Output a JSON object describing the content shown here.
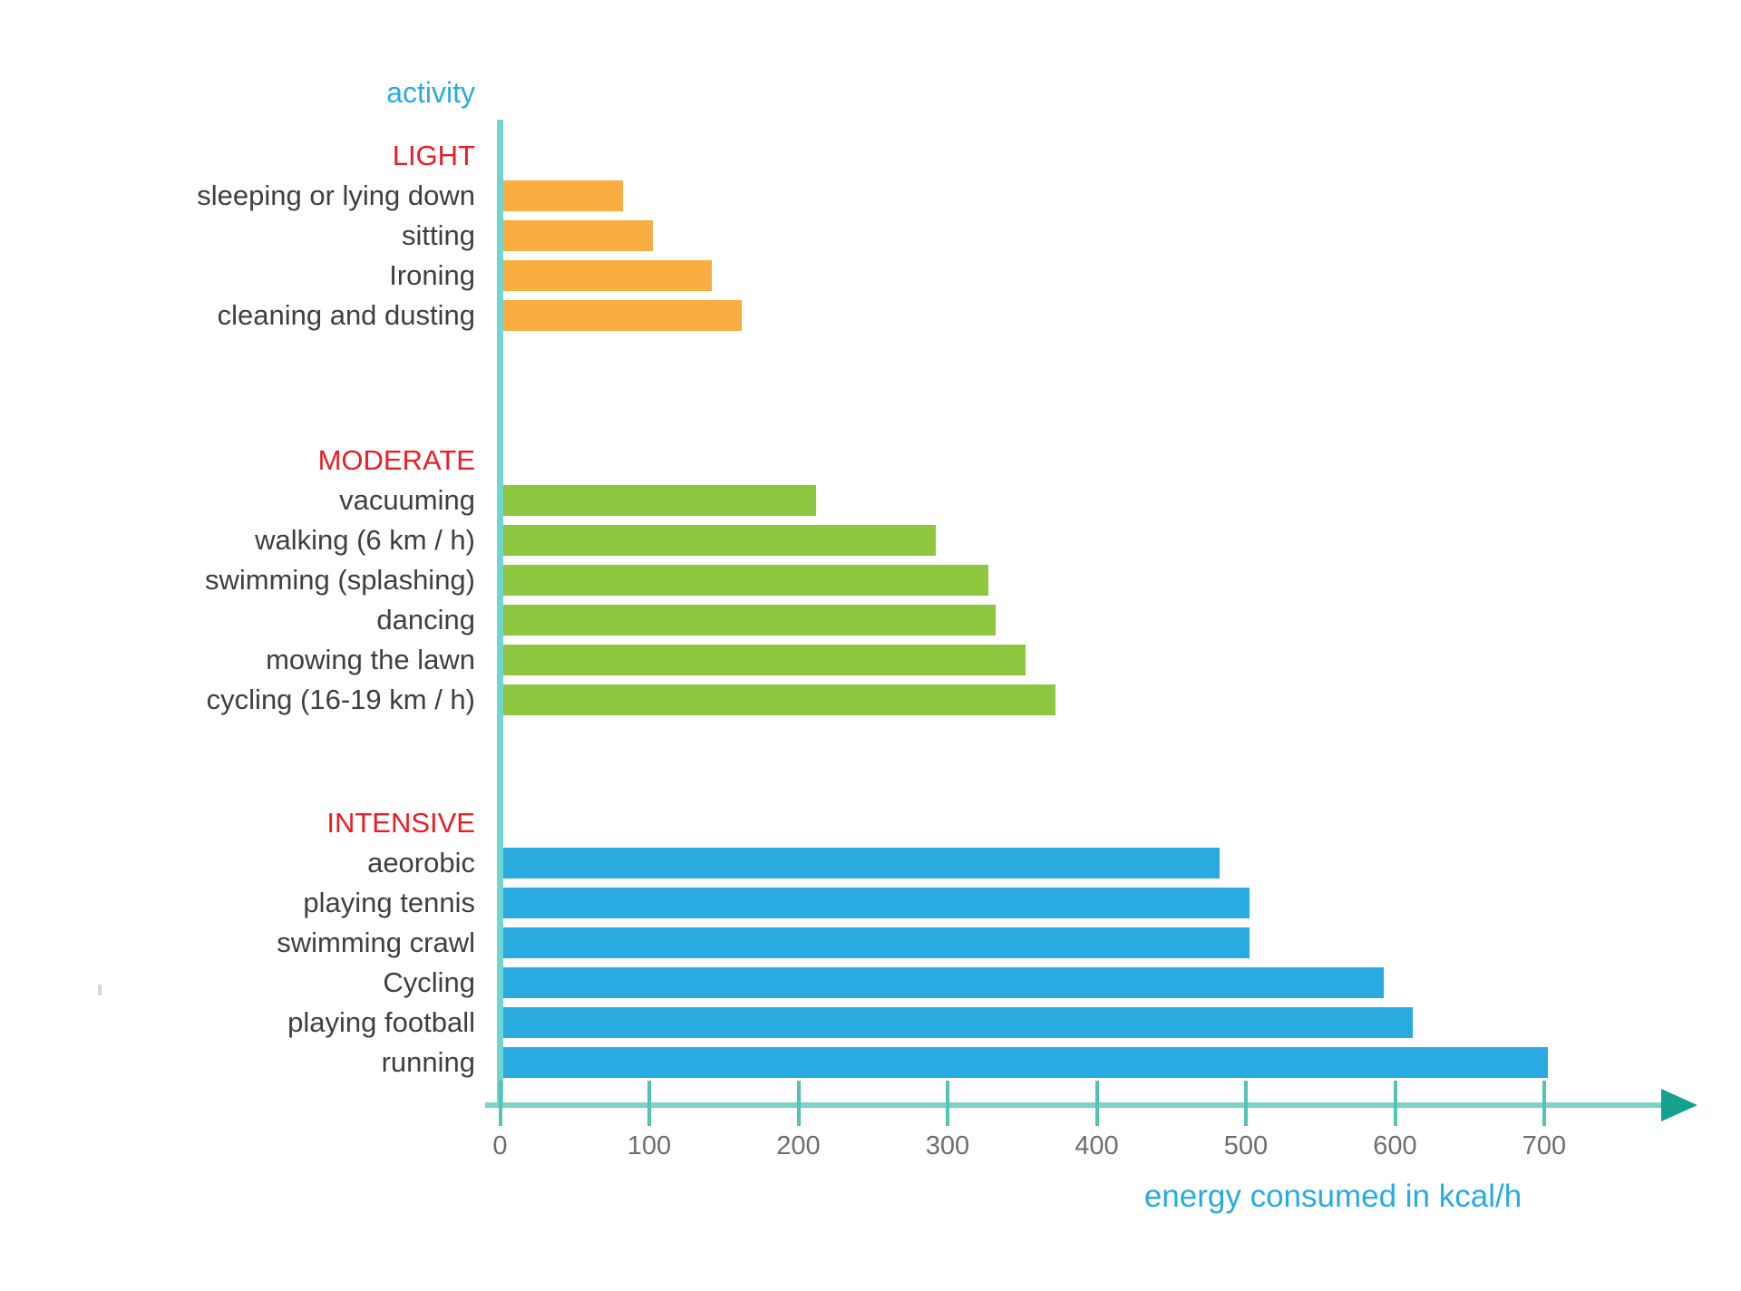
{
  "chart_data": {
    "type": "bar",
    "orientation": "horizontal",
    "title": "activity",
    "xlabel": "energy consumed in kcal/h",
    "xlim": [
      0,
      760
    ],
    "xticks": [
      0,
      100,
      200,
      300,
      400,
      500,
      600,
      700
    ],
    "grid": false,
    "legend": "none",
    "value_unit": "kcal/h",
    "colors": {
      "title_blue": "#29ABE2",
      "header_red": "#EC1C24",
      "label_gray": "#3F3F41",
      "tick_label_gray": "#6D6E71",
      "axis_vertical_teal": "#70D6D0",
      "axis_horizontal_teal": "#7DD1C7",
      "tick_teal": "#52C3B7",
      "arrow_teal": "#13A28F",
      "light_orange": "#FAAE42",
      "moderate_green": "#8DC63F",
      "intensive_blue": "#29ABE2"
    },
    "groups": [
      {
        "label": "LIGHT",
        "bar_color": "#FAAE42",
        "items": [
          {
            "label": "sleeping or lying down",
            "value": 80
          },
          {
            "label": "sitting",
            "value": 100
          },
          {
            "label": "Ironing",
            "value": 140
          },
          {
            "label": "cleaning and dusting",
            "value": 160
          }
        ]
      },
      {
        "label": "MODERATE",
        "bar_color": "#8DC63F",
        "items": [
          {
            "label": "vacuuming",
            "value": 210
          },
          {
            "label": "walking (6 km / h)",
            "value": 290
          },
          {
            "label": "swimming (splashing)",
            "value": 325
          },
          {
            "label": "dancing",
            "value": 330
          },
          {
            "label": "mowing the lawn",
            "value": 350
          },
          {
            "label": "cycling (16-19 km / h)",
            "value": 370
          }
        ]
      },
      {
        "label": "INTENSIVE",
        "bar_color": "#29ABE2",
        "items": [
          {
            "label": "aeorobic",
            "value": 480
          },
          {
            "label": "playing tennis",
            "value": 500
          },
          {
            "label": "swimming crawl",
            "value": 500
          },
          {
            "label": "Cycling",
            "value": 590
          },
          {
            "label": "playing football",
            "value": 610
          },
          {
            "label": "running",
            "value": 700
          }
        ]
      }
    ]
  }
}
